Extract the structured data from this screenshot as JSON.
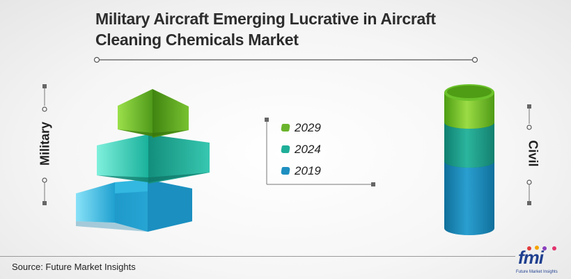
{
  "title_line1": "Military Aircraft Emerging Lucrative in Aircraft",
  "title_line2": "Cleaning Chemicals Market",
  "chart_data": {
    "type": "bar",
    "title": "Military Aircraft Emerging Lucrative in Aircraft Cleaning Chemicals Market",
    "categories": [
      "Military",
      "Civil"
    ],
    "series": [
      {
        "name": "2029",
        "color": "#6ab42d"
      },
      {
        "name": "2024",
        "color": "#1fae98"
      },
      {
        "name": "2019",
        "color": "#1e8fc0"
      }
    ],
    "legend_position": "center"
  },
  "labels": {
    "military": "Military",
    "civil": "Civil"
  },
  "source": "Source: Future Market Insights",
  "logo": {
    "text": "fmi",
    "subtitle": "Future Market Insights"
  }
}
